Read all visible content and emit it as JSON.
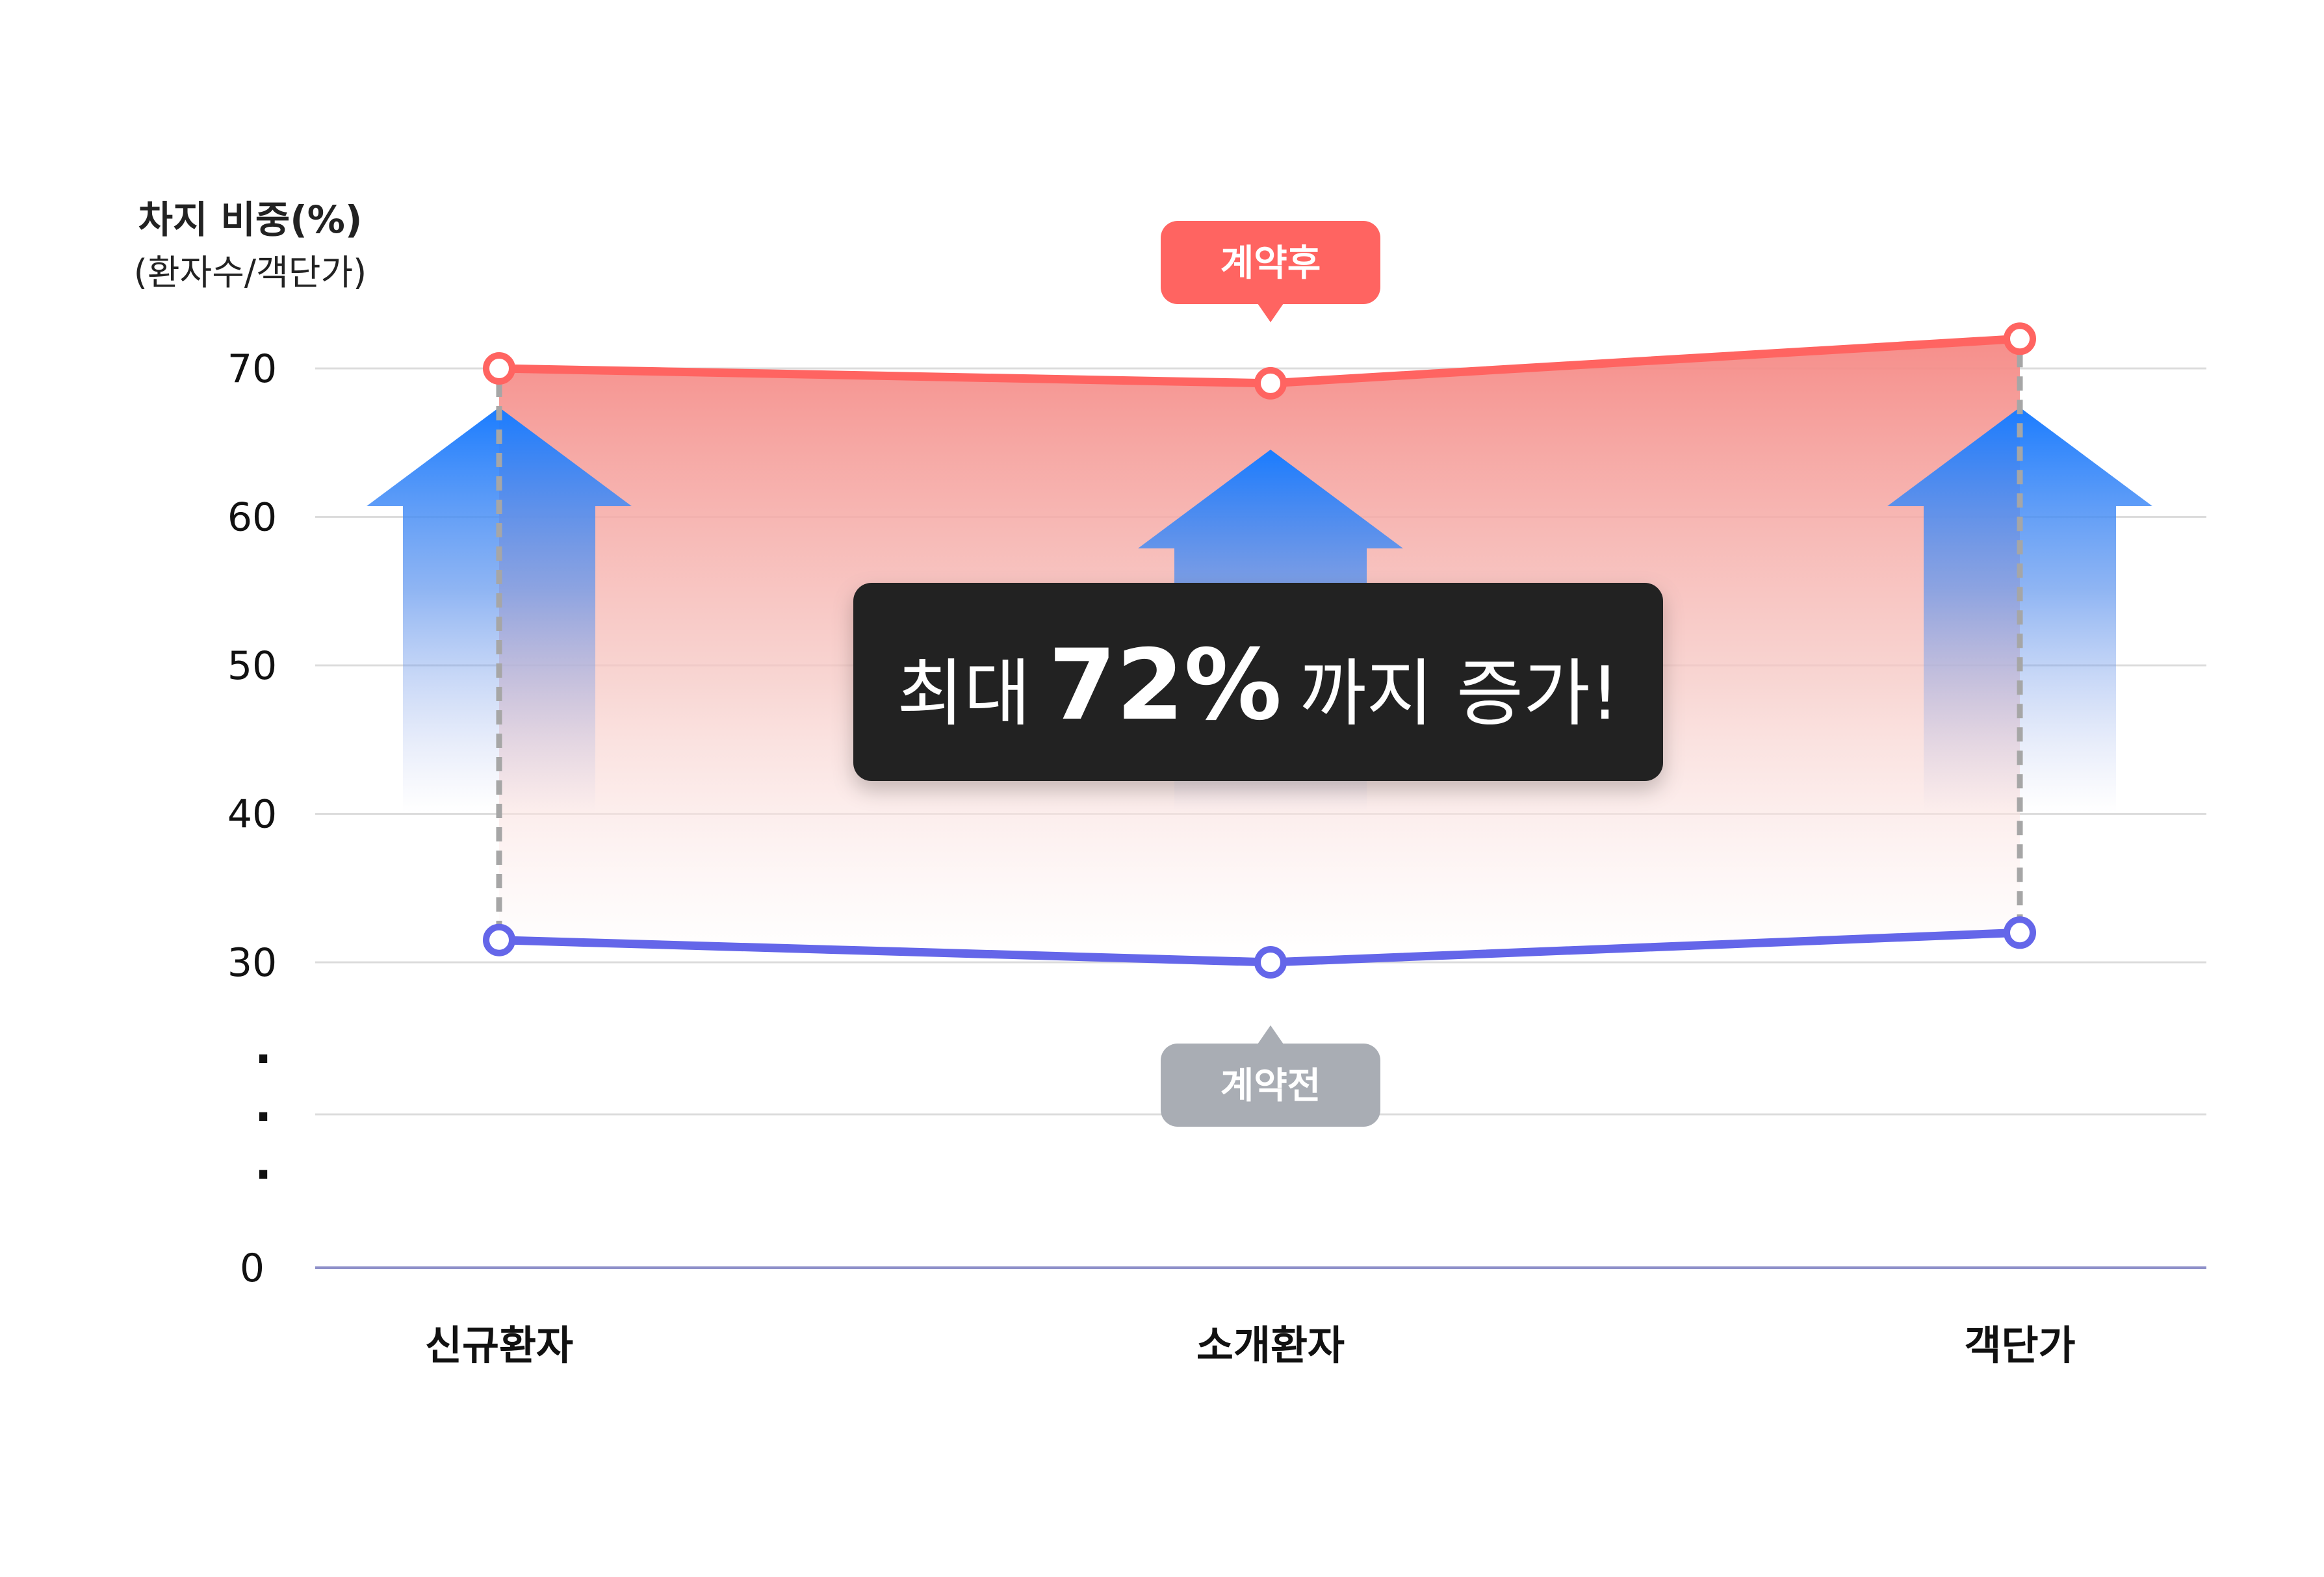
{
  "chart_data": {
    "type": "line",
    "ylabel": "차지 비중(%)",
    "ylabel_sub": "(환자수/객단가)",
    "categories": [
      "신규환자",
      "소개환자",
      "객단가"
    ],
    "yticks": [
      70,
      60,
      50,
      40,
      30,
      0
    ],
    "axis_break_marks": [
      "·",
      "·",
      "·"
    ],
    "series": [
      {
        "name": "계약후",
        "values": [
          70,
          69,
          72
        ],
        "color": "#ff6461"
      },
      {
        "name": "계약전",
        "values": [
          31.5,
          30,
          32
        ],
        "color": "#6466e9"
      }
    ],
    "annotation": {
      "pre": "최대",
      "value": "72%",
      "post": "까지 증가!"
    },
    "grid": true,
    "colors": {
      "after_tag": "#ff6461",
      "before_tag": "#a9adb4",
      "arrow": "#1a7cff",
      "banner_bg": "#232323",
      "gridline": "#dcdcdc",
      "baseline": "#8e90c9",
      "drop_line": "#a6a6a6"
    }
  }
}
